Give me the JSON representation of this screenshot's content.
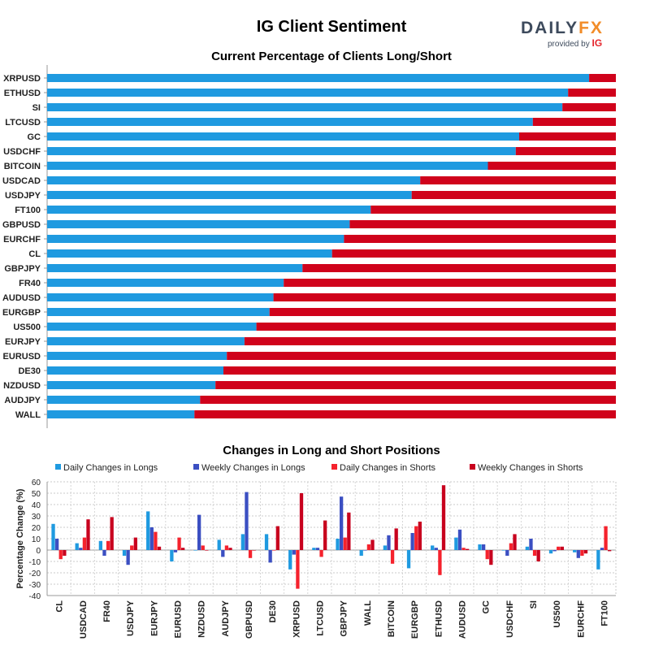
{
  "page": {
    "title": "IG Client Sentiment",
    "logo": {
      "brand_a": "DAILY",
      "brand_b": "FX",
      "provided_by": "provided by",
      "provider": "IG"
    }
  },
  "colors": {
    "long": "#1f9ae0",
    "short": "#d0021b",
    "daily_longs": "#1f9ae0",
    "weekly_longs": "#3b4fc2",
    "daily_shorts": "#f5222d",
    "weekly_shorts": "#c8001e"
  },
  "chart_data": [
    {
      "type": "bar",
      "orientation": "horizontal",
      "stacked": true,
      "title": "Current Percentage of Clients Long/Short",
      "categories": [
        "XRPUSD",
        "ETHUSD",
        "SI",
        "LTCUSD",
        "GC",
        "USDCHF",
        "BITCOIN",
        "USDCAD",
        "USDJPY",
        "FT100",
        "GBPUSD",
        "EURCHF",
        "CL",
        "GBPJPY",
        "FR40",
        "AUDUSD",
        "EURGBP",
        "US500",
        "EURJPY",
        "EURUSD",
        "DE30",
        "NZDUSD",
        "AUDJPY",
        "WALL"
      ],
      "series": [
        {
          "name": "Long",
          "values": [
            95.3,
            91.6,
            90.6,
            85.4,
            83.0,
            82.4,
            77.5,
            65.6,
            64.1,
            56.9,
            53.2,
            52.2,
            50.1,
            44.9,
            41.6,
            39.8,
            39.1,
            36.8,
            34.7,
            31.6,
            31.0,
            29.6,
            26.9,
            25.9
          ]
        },
        {
          "name": "Short",
          "values": [
            4.7,
            8.4,
            9.4,
            14.6,
            17.0,
            17.6,
            22.5,
            34.4,
            35.9,
            43.1,
            46.8,
            47.8,
            49.9,
            55.1,
            58.4,
            60.2,
            60.9,
            63.2,
            65.3,
            68.4,
            69.0,
            70.4,
            73.1,
            74.1
          ]
        }
      ],
      "xlim": [
        0,
        100
      ]
    },
    {
      "type": "bar",
      "title": "Changes in Long and Short Positions",
      "ylabel": "Percentage Change (%)",
      "ylim": [
        -40,
        60
      ],
      "yticks": [
        -40,
        -30,
        -20,
        -10,
        0,
        10,
        20,
        30,
        40,
        50,
        60
      ],
      "grid": true,
      "legend": "top",
      "categories": [
        "CL",
        "USDCAD",
        "FR40",
        "USDJPY",
        "EURJPY",
        "EURUSD",
        "NZDUSD",
        "AUDJPY",
        "GBPUSD",
        "DE30",
        "XRPUSD",
        "LTCUSD",
        "GBPJPY",
        "WALL",
        "BITCOIN",
        "EURGBP",
        "ETHUSD",
        "AUDUSD",
        "GC",
        "USDCHF",
        "SI",
        "US500",
        "EURCHF",
        "FT100"
      ],
      "series": [
        {
          "name": "Daily Changes in Longs",
          "values": [
            23,
            6,
            8,
            -5,
            34,
            -10,
            0,
            9,
            14,
            14,
            -17,
            2,
            10,
            -5,
            4,
            -16,
            4,
            11,
            5,
            0,
            3,
            -3,
            -2,
            -17
          ]
        },
        {
          "name": "Weekly Changes in Longs",
          "values": [
            10,
            2,
            -5,
            -13,
            20,
            -2,
            31,
            -6,
            51,
            -11,
            -4,
            2,
            47,
            0,
            13,
            15,
            2,
            18,
            5,
            -5,
            10,
            -1,
            -7,
            2
          ]
        },
        {
          "name": "Daily Changes in Shorts",
          "values": [
            -8,
            11,
            8,
            4,
            16,
            11,
            4,
            4,
            -7,
            0,
            -34,
            -6,
            11,
            5,
            -12,
            21,
            -22,
            2,
            -8,
            6,
            -5,
            3,
            -5,
            21
          ]
        },
        {
          "name": "Weekly Changes in Shorts",
          "values": [
            -5,
            27,
            29,
            11,
            3,
            2,
            0,
            2,
            0,
            21,
            50,
            26,
            33,
            9,
            19,
            25,
            57,
            1,
            -13,
            14,
            -10,
            3,
            -3,
            -1
          ]
        }
      ]
    }
  ]
}
